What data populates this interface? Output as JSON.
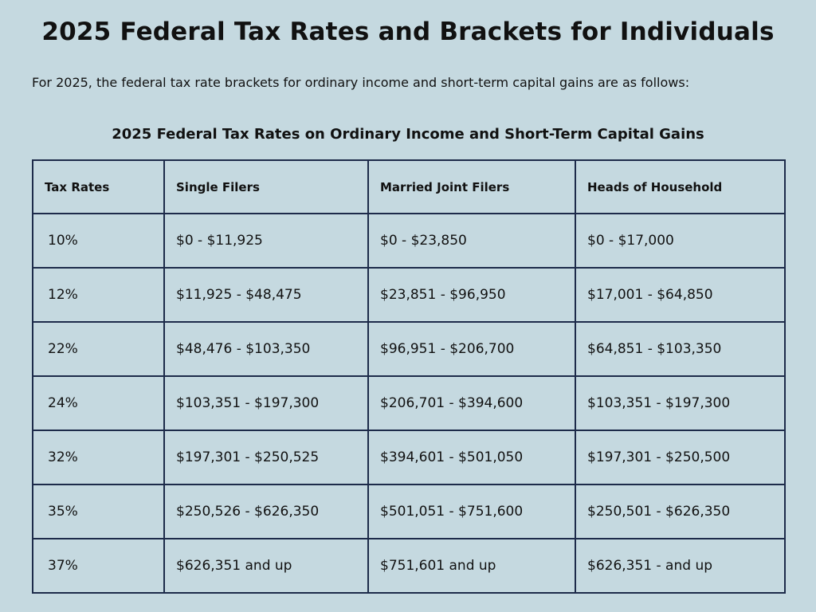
{
  "title": "2025 Federal Tax Rates and Brackets for Individuals",
  "intro": "For 2025, the federal tax rate brackets for ordinary income and short-term capital gains are as follows:",
  "table": {
    "title": "2025 Federal Tax Rates on Ordinary Income and Short-Term Capital Gains",
    "headers": {
      "rate": "Tax Rates",
      "single": "Single Filers",
      "married": "Married Joint Filers",
      "heads": "Heads of Household"
    },
    "rows": [
      {
        "rate": "10%",
        "single": "$0 - $11,925",
        "married": "$0 - $23,850",
        "heads": "$0 - $17,000"
      },
      {
        "rate": "12%",
        "single": "$11,925 - $48,475",
        "married": "$23,851 - $96,950",
        "heads": "$17,001 - $64,850"
      },
      {
        "rate": "22%",
        "single": "$48,476 - $103,350",
        "married": "$96,951 - $206,700",
        "heads": "$64,851 - $103,350"
      },
      {
        "rate": "24%",
        "single": "$103,351 - $197,300",
        "married": "$206,701 - $394,600",
        "heads": "$103,351 - $197,300"
      },
      {
        "rate": "32%",
        "single": "$197,301 - $250,525",
        "married": "$394,601 - $501,050",
        "heads": "$197,301 - $250,500"
      },
      {
        "rate": "35%",
        "single": "$250,526 - $626,350",
        "married": "$501,051 - $751,600",
        "heads": "$250,501 - $626,350"
      },
      {
        "rate": "37%",
        "single": "$626,351 and up",
        "married": "$751,601 and up",
        "heads": "$626,351 - and up"
      }
    ]
  }
}
